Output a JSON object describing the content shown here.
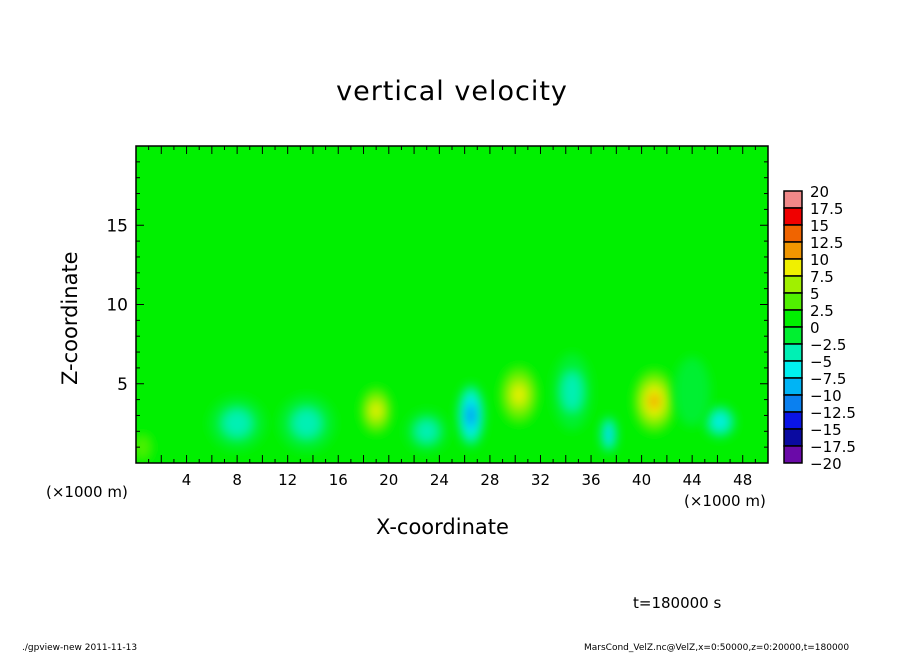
{
  "chart_data": {
    "type": "heatmap",
    "title": "vertical velocity",
    "xlabel": "X-coordinate",
    "ylabel": "Z-coordinate",
    "x_units": "(×1000 m)",
    "y_units": "(×1000 m)",
    "xlim": [
      0,
      50
    ],
    "ylim": [
      0,
      20
    ],
    "x_ticks": [
      4,
      8,
      12,
      16,
      20,
      24,
      28,
      32,
      36,
      40,
      44,
      48
    ],
    "y_ticks": [
      5,
      10,
      15
    ],
    "background_value": 0,
    "features": [
      {
        "x": 19,
        "z": 3.3,
        "sx": 1.3,
        "sz": 1.6,
        "value": 9
      },
      {
        "x": 30.3,
        "z": 4.3,
        "sx": 1.6,
        "sz": 2.0,
        "value": 11
      },
      {
        "x": 41,
        "z": 3.9,
        "sx": 1.7,
        "sz": 2.1,
        "value": 12.5
      },
      {
        "x": 26.5,
        "z": 3.0,
        "sx": 1.0,
        "sz": 1.9,
        "value": -11.5
      },
      {
        "x": 37.4,
        "z": 1.8,
        "sx": 0.6,
        "sz": 1.1,
        "value": -11
      },
      {
        "x": 46.2,
        "z": 2.6,
        "sx": 1.2,
        "sz": 1.0,
        "value": -8
      },
      {
        "x": 34.5,
        "z": 4.5,
        "sx": 1.4,
        "sz": 2.2,
        "value": -5.5
      },
      {
        "x": 8,
        "z": 2.5,
        "sx": 2.0,
        "sz": 1.5,
        "value": -5
      },
      {
        "x": 13.5,
        "z": 2.5,
        "sx": 2.0,
        "sz": 1.6,
        "value": -5
      },
      {
        "x": 23,
        "z": 2.0,
        "sx": 1.5,
        "sz": 1.2,
        "value": -4
      },
      {
        "x": 44,
        "z": 4.5,
        "sx": 1.3,
        "sz": 2.0,
        "value": -3.5
      },
      {
        "x": 0.5,
        "z": 1.0,
        "sx": 1.0,
        "sz": 1.2,
        "value": 4
      },
      {
        "x": 48.5,
        "z": 11.5,
        "sx": 0.8,
        "sz": 1.5,
        "value": 2
      }
    ],
    "colorbar": {
      "levels": [
        -20,
        -17.5,
        -15,
        -12.5,
        -10,
        -7.5,
        -5,
        -2.5,
        0,
        2.5,
        5,
        7.5,
        10,
        12.5,
        15,
        17.5,
        20
      ],
      "labels": [
        "20",
        "17.5",
        "15",
        "12.5",
        "10",
        "7.5",
        "5",
        "2.5",
        "0",
        "−2.5",
        "−5",
        "−7.5",
        "−10",
        "−12.5",
        "−15",
        "−17.5",
        "−20"
      ],
      "colors": [
        "#6a0aa8",
        "#0a0aa0",
        "#0a14e6",
        "#0a50f0",
        "#0a80f0",
        "#00b4f5",
        "#00f0f0",
        "#00f0b4",
        "#00f078",
        "#00f030",
        "#00f000",
        "#50f000",
        "#a0f000",
        "#f0f000",
        "#f0c800",
        "#f09600",
        "#f06400",
        "#f00000",
        "#f04040",
        "#f08888"
      ]
    }
  },
  "annotations": {
    "x_units": "(×1000 m)",
    "y_units": "(×1000 m)",
    "time": "t=180000 s",
    "footer_left": "./gpview-new  2011-11-13",
    "footer_right": "MarsCond_VelZ.nc@VelZ,x=0:50000,z=0:20000,t=180000"
  }
}
